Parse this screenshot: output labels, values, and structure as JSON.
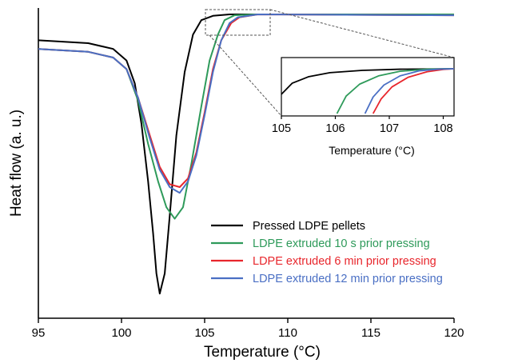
{
  "chart_data": [
    {
      "type": "line",
      "xlabel": "Temperature (°C)",
      "ylabel": "Heat flow (a. u.)",
      "xlim": [
        95,
        120
      ],
      "xticks": [
        95,
        100,
        105,
        110,
        115,
        120
      ],
      "y_ticks_shown": false,
      "legend_position": "bottom-right",
      "series": [
        {
          "name": "Pressed LDPE pellets",
          "color": "#000000",
          "points": [
            [
              95,
              0.91
            ],
            [
              98,
              0.9
            ],
            [
              99.5,
              0.88
            ],
            [
              100.3,
              0.84
            ],
            [
              100.8,
              0.76
            ],
            [
              101.2,
              0.62
            ],
            [
              101.6,
              0.42
            ],
            [
              101.9,
              0.24
            ],
            [
              102.1,
              0.1
            ],
            [
              102.3,
              0.03
            ],
            [
              102.6,
              0.1
            ],
            [
              102.9,
              0.3
            ],
            [
              103.3,
              0.58
            ],
            [
              103.8,
              0.8
            ],
            [
              104.3,
              0.93
            ],
            [
              104.8,
              0.98
            ],
            [
              105.5,
              0.995
            ],
            [
              106.5,
              1.0
            ],
            [
              108,
              1.0
            ],
            [
              120,
              1.0
            ]
          ]
        },
        {
          "name": "LDPE extruded 10 s prior pressing",
          "color": "#2e9a5a",
          "points": [
            [
              95,
              0.88
            ],
            [
              98,
              0.87
            ],
            [
              99.5,
              0.85
            ],
            [
              100.3,
              0.81
            ],
            [
              101,
              0.7
            ],
            [
              101.6,
              0.55
            ],
            [
              102.2,
              0.42
            ],
            [
              102.7,
              0.33
            ],
            [
              103.2,
              0.29
            ],
            [
              103.7,
              0.33
            ],
            [
              104.2,
              0.48
            ],
            [
              104.8,
              0.68
            ],
            [
              105.3,
              0.84
            ],
            [
              105.8,
              0.93
            ],
            [
              106.2,
              0.98
            ],
            [
              106.8,
              0.997
            ],
            [
              108,
              1.0
            ],
            [
              120,
              1.0
            ]
          ]
        },
        {
          "name": "LDPE extruded 6 min prior pressing",
          "color": "#e8262c",
          "points": [
            [
              95,
              0.88
            ],
            [
              98,
              0.87
            ],
            [
              99.5,
              0.85
            ],
            [
              100.3,
              0.81
            ],
            [
              101,
              0.71
            ],
            [
              101.7,
              0.58
            ],
            [
              102.3,
              0.47
            ],
            [
              102.9,
              0.41
            ],
            [
              103.5,
              0.4
            ],
            [
              104,
              0.43
            ],
            [
              104.5,
              0.52
            ],
            [
              105,
              0.66
            ],
            [
              105.5,
              0.81
            ],
            [
              106,
              0.91
            ],
            [
              106.6,
              0.97
            ],
            [
              107.1,
              0.99
            ],
            [
              108.2,
              1.0
            ],
            [
              120,
              0.997
            ]
          ]
        },
        {
          "name": "LDPE extruded 12 min prior pressing",
          "color": "#4a6fc4",
          "points": [
            [
              95,
              0.88
            ],
            [
              98,
              0.87
            ],
            [
              99.5,
              0.85
            ],
            [
              100.3,
              0.81
            ],
            [
              101,
              0.71
            ],
            [
              101.7,
              0.57
            ],
            [
              102.3,
              0.46
            ],
            [
              102.9,
              0.4
            ],
            [
              103.5,
              0.38
            ],
            [
              104,
              0.42
            ],
            [
              104.5,
              0.51
            ],
            [
              105,
              0.65
            ],
            [
              105.5,
              0.8
            ],
            [
              106,
              0.91
            ],
            [
              106.5,
              0.97
            ],
            [
              107,
              0.99
            ],
            [
              108.2,
              1.0
            ],
            [
              120,
              0.997
            ]
          ]
        }
      ]
    },
    {
      "type": "line",
      "role": "inset",
      "xlabel": "Temperature (°C)",
      "xlim": [
        105,
        108.2
      ],
      "xticks": [
        105,
        106,
        107,
        108
      ],
      "series": [
        {
          "name": "Pressed LDPE pellets",
          "color": "#000000",
          "points": [
            [
              105,
              0.42
            ],
            [
              105.2,
              0.66
            ],
            [
              105.5,
              0.8
            ],
            [
              105.9,
              0.89
            ],
            [
              106.5,
              0.94
            ],
            [
              107.2,
              0.965
            ],
            [
              108.2,
              0.975
            ]
          ]
        },
        {
          "name": "LDPE extruded 10 s prior pressing",
          "color": "#2e9a5a",
          "points": [
            [
              106.03,
              0.0
            ],
            [
              106.2,
              0.38
            ],
            [
              106.45,
              0.64
            ],
            [
              106.8,
              0.82
            ],
            [
              107.2,
              0.92
            ],
            [
              107.7,
              0.965
            ],
            [
              108.2,
              0.975
            ]
          ]
        },
        {
          "name": "LDPE extruded 6 min prior pressing",
          "color": "#e8262c",
          "points": [
            [
              106.7,
              0.0
            ],
            [
              106.85,
              0.32
            ],
            [
              107.05,
              0.58
            ],
            [
              107.35,
              0.79
            ],
            [
              107.7,
              0.91
            ],
            [
              108.0,
              0.96
            ],
            [
              108.2,
              0.975
            ]
          ]
        },
        {
          "name": "LDPE extruded 12 min prior pressing",
          "color": "#4a6fc4",
          "points": [
            [
              106.55,
              0.0
            ],
            [
              106.7,
              0.36
            ],
            [
              106.9,
              0.62
            ],
            [
              107.2,
              0.82
            ],
            [
              107.55,
              0.93
            ],
            [
              107.9,
              0.965
            ],
            [
              108.2,
              0.975
            ]
          ]
        }
      ]
    }
  ]
}
